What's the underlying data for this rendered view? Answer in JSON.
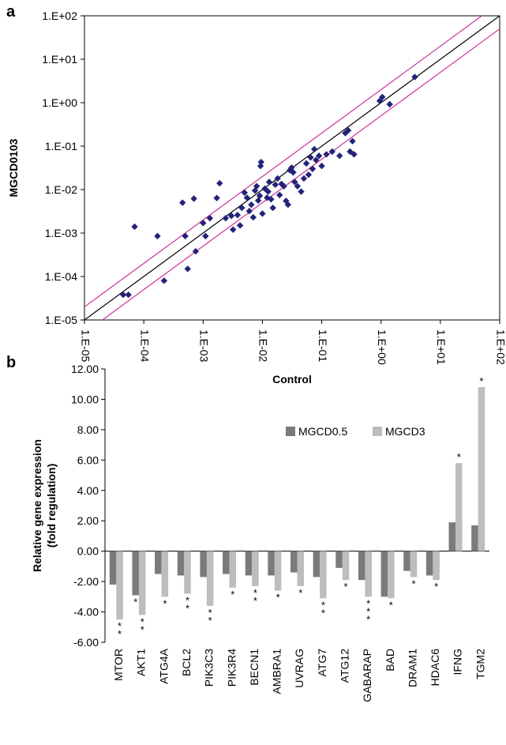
{
  "panel_labels": {
    "a": "a",
    "b": "b"
  },
  "colors": {
    "scatter_point": "#23237a",
    "fit_line": "#000000",
    "bound_lines": "#cc3399",
    "series_dark": "#7a7a7a",
    "series_light": "#bdbdbd"
  },
  "chart_data": [
    {
      "type": "scatter",
      "xlabel": "Control",
      "ylabel": "MGCD0103",
      "scale": "log",
      "xlim": [
        1e-05,
        100
      ],
      "ylim": [
        1e-05,
        100
      ],
      "x_tick_labels": [
        "1.E-05",
        "1.E-04",
        "1.E-03",
        "1.E-02",
        "1.E-01",
        "1.E+00",
        "1.E+01",
        "1.E+02"
      ],
      "y_tick_labels": [
        "1.E-05",
        "1.E-04",
        "1.E-03",
        "1.E-02",
        "1.E-01",
        "1.E+00",
        "1.E+01",
        "1.E+02"
      ],
      "grid": false,
      "lines": [
        {
          "kind": "identity",
          "factor": 1
        },
        {
          "kind": "upper",
          "factor": 2
        },
        {
          "kind": "lower",
          "factor": 0.5
        }
      ],
      "points": [
        [
          4.5e-05,
          3.8e-05
        ],
        [
          5.5e-05,
          3.8e-05
        ],
        [
          7e-05,
          0.0014
        ],
        [
          0.00017,
          0.00085
        ],
        [
          0.00022,
          8e-05
        ],
        [
          0.00045,
          0.005
        ],
        [
          0.0005,
          0.00085
        ],
        [
          0.00055,
          0.00015
        ],
        [
          0.0007,
          0.0062
        ],
        [
          0.00075,
          0.00038
        ],
        [
          0.001,
          0.0017
        ],
        [
          0.0011,
          0.00085
        ],
        [
          0.0013,
          0.0022
        ],
        [
          0.0017,
          0.0064
        ],
        [
          0.0019,
          0.014
        ],
        [
          0.0024,
          0.0022
        ],
        [
          0.003,
          0.0025
        ],
        [
          0.0032,
          0.0012
        ],
        [
          0.0038,
          0.0026
        ],
        [
          0.0042,
          0.0015
        ],
        [
          0.0045,
          0.0038
        ],
        [
          0.005,
          0.0085
        ],
        [
          0.0055,
          0.0065
        ],
        [
          0.006,
          0.0032
        ],
        [
          0.0065,
          0.0045
        ],
        [
          0.007,
          0.0023
        ],
        [
          0.0075,
          0.0095
        ],
        [
          0.008,
          0.012
        ],
        [
          0.0085,
          0.0056
        ],
        [
          0.009,
          0.0072
        ],
        [
          0.0093,
          0.035
        ],
        [
          0.0095,
          0.043
        ],
        [
          0.01,
          0.0028
        ],
        [
          0.011,
          0.0105
        ],
        [
          0.012,
          0.0065
        ],
        [
          0.0125,
          0.009
        ],
        [
          0.013,
          0.015
        ],
        [
          0.014,
          0.006
        ],
        [
          0.015,
          0.0038
        ],
        [
          0.0165,
          0.013
        ],
        [
          0.018,
          0.018
        ],
        [
          0.0195,
          0.0075
        ],
        [
          0.021,
          0.0135
        ],
        [
          0.023,
          0.012
        ],
        [
          0.025,
          0.0055
        ],
        [
          0.027,
          0.0045
        ],
        [
          0.029,
          0.028
        ],
        [
          0.031,
          0.032
        ],
        [
          0.033,
          0.025
        ],
        [
          0.035,
          0.015
        ],
        [
          0.039,
          0.012
        ],
        [
          0.045,
          0.009
        ],
        [
          0.05,
          0.018
        ],
        [
          0.055,
          0.04
        ],
        [
          0.06,
          0.022
        ],
        [
          0.065,
          0.055
        ],
        [
          0.07,
          0.03
        ],
        [
          0.075,
          0.085
        ],
        [
          0.08,
          0.048
        ],
        [
          0.09,
          0.06
        ],
        [
          0.1,
          0.035
        ],
        [
          0.12,
          0.065
        ],
        [
          0.15,
          0.075
        ],
        [
          0.2,
          0.06
        ],
        [
          0.25,
          0.2
        ],
        [
          0.28,
          0.23
        ],
        [
          0.3,
          0.075
        ],
        [
          0.33,
          0.13
        ],
        [
          0.35,
          0.065
        ],
        [
          0.95,
          1.1
        ],
        [
          1.05,
          1.35
        ],
        [
          1.4,
          0.92
        ],
        [
          3.7,
          3.9
        ]
      ]
    },
    {
      "type": "bar",
      "ylabel": "Relative gene expression (fold regulation)",
      "ylabel_lines": [
        "Relative gene expression",
        "(fold regulation)"
      ],
      "ylim": [
        -6,
        12
      ],
      "y_ticks": [
        12,
        10,
        8,
        6,
        4,
        2,
        0,
        -2,
        -4,
        -6
      ],
      "y_tick_labels": [
        "12.00",
        "10.00",
        "8.00",
        "6.00",
        "4.00",
        "2.00",
        "0.00",
        "-2.00",
        "-4.00",
        "-6.00"
      ],
      "legend_position": "top-center",
      "categories": [
        "MTOR",
        "AKT1",
        "ATG4A",
        "BCL2",
        "PIK3C3",
        "PIK3R4",
        "BECN1",
        "AMBRA1",
        "UVRAG",
        "ATG7",
        "ATG12",
        "GABARAP",
        "BAD",
        "DRAM1",
        "HDAC6",
        "IFNG",
        "TGM2"
      ],
      "series": [
        {
          "name": "MGCD0.5",
          "values": [
            -2.2,
            -2.9,
            -1.5,
            -1.6,
            -1.7,
            -1.5,
            -1.6,
            -1.6,
            -1.4,
            -1.7,
            -1.1,
            -1.9,
            -3.0,
            -1.3,
            -1.6,
            1.9,
            1.7
          ],
          "stars": [
            "",
            "*",
            "",
            "",
            "",
            "",
            "",
            "",
            "",
            "",
            "",
            "",
            "",
            "",
            "",
            "",
            ""
          ]
        },
        {
          "name": "MGCD3",
          "values": [
            -4.5,
            -4.2,
            -3.0,
            -2.8,
            -3.6,
            -2.4,
            -2.3,
            -2.6,
            -2.3,
            -3.1,
            -1.9,
            -3.0,
            -3.1,
            -1.7,
            -1.9,
            5.8,
            10.8
          ],
          "stars": [
            "**",
            "**",
            "*",
            "**",
            "**",
            "*",
            "**",
            "*",
            "*",
            "**",
            "*",
            "***",
            "*",
            "*",
            "*",
            "*",
            "*"
          ]
        }
      ]
    }
  ]
}
